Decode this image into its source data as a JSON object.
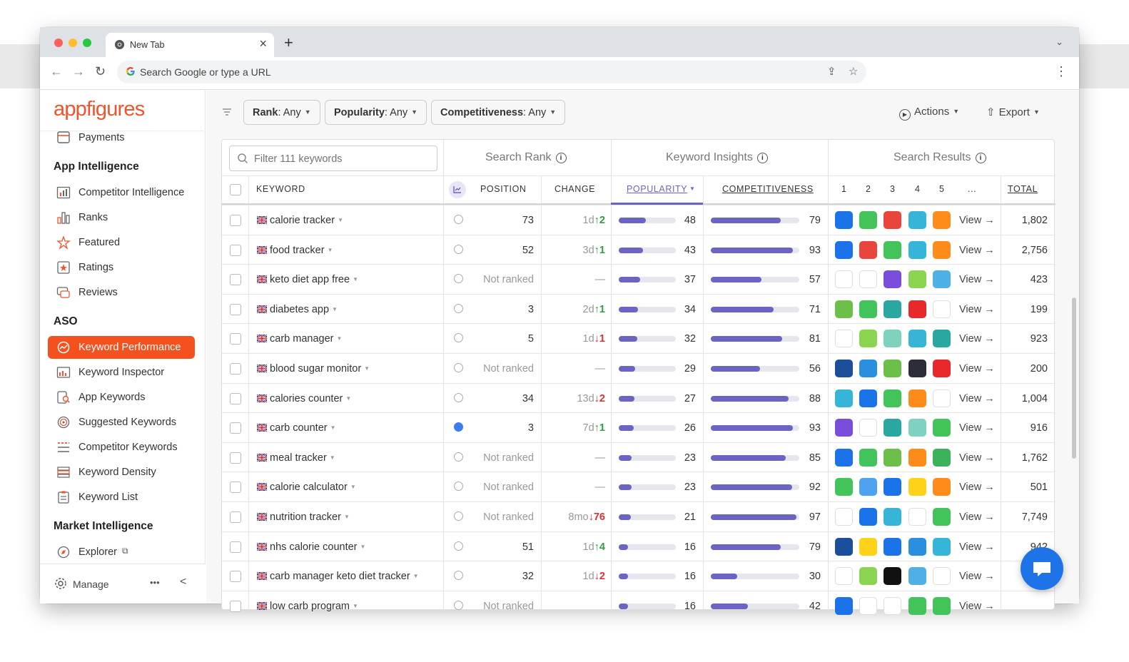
{
  "browser": {
    "tab_title": "New Tab",
    "omnibox_placeholder": "Search Google or type a URL"
  },
  "sidebar": {
    "logo": "appfigures",
    "top_item": "Payments",
    "sections": [
      {
        "title": "App Intelligence",
        "items": [
          "Competitor Intelligence",
          "Ranks",
          "Featured",
          "Ratings",
          "Reviews"
        ]
      },
      {
        "title": "ASO",
        "items": [
          "Keyword Performance",
          "Keyword Inspector",
          "App Keywords",
          "Suggested Keywords",
          "Competitor Keywords",
          "Keyword Density",
          "Keyword List"
        ]
      },
      {
        "title": "Market Intelligence",
        "items": [
          "Explorer"
        ]
      }
    ],
    "active_item": "Keyword Performance",
    "footer": {
      "manage": "Manage",
      "more": "•••",
      "collapse": "<"
    }
  },
  "filters": [
    {
      "label": "Rank",
      "value": ": Any"
    },
    {
      "label": "Popularity",
      "value": ": Any"
    },
    {
      "label": "Competitiveness",
      "value": ": Any"
    }
  ],
  "actions": {
    "actions_label": "Actions",
    "export_label": "Export"
  },
  "table": {
    "filter_placeholder": "Filter 111 keywords",
    "groups": {
      "search_rank": "Search Rank",
      "keyword_insights": "Keyword Insights",
      "search_results": "Search Results"
    },
    "columns": {
      "keyword": "KEYWORD",
      "position": "POSITION",
      "change": "CHANGE",
      "popularity": "POPULARITY",
      "competitiveness": "COMPETITIVENESS",
      "results": [
        "1",
        "2",
        "3",
        "4",
        "5",
        "..."
      ],
      "total": "TOTAL"
    },
    "view_label": "View →",
    "rows": [
      {
        "keyword": "calorie tracker",
        "position": "73",
        "ranked": true,
        "change_time": "1d",
        "change_dir": "up",
        "change_val": "2",
        "popularity": 48,
        "competitiveness": 79,
        "apps": [
          "#1a73e8",
          "#43c45a",
          "#e8453c",
          "#36b5d8",
          "#ff8c1a"
        ],
        "total": "1,802"
      },
      {
        "keyword": "food tracker",
        "position": "52",
        "ranked": true,
        "change_time": "3d",
        "change_dir": "up",
        "change_val": "1",
        "popularity": 43,
        "competitiveness": 93,
        "apps": [
          "#1a73e8",
          "#e8453c",
          "#43c45a",
          "#36b5d8",
          "#ff8c1a"
        ],
        "total": "2,756"
      },
      {
        "keyword": "keto diet app free",
        "position": "Not ranked",
        "ranked": false,
        "change_time": "",
        "change_dir": "none",
        "change_val": "—",
        "popularity": 37,
        "competitiveness": 57,
        "apps": [
          "#ffffff",
          "#ffffff",
          "#7b4ddb",
          "#8bd450",
          "#4fb0e8"
        ],
        "total": "423"
      },
      {
        "keyword": "diabetes app",
        "position": "3",
        "ranked": true,
        "change_time": "2d",
        "change_dir": "up",
        "change_val": "1",
        "popularity": 34,
        "competitiveness": 71,
        "apps": [
          "#6cc04a",
          "#43c45a",
          "#2aa7a0",
          "#e8282b",
          "#ffffff"
        ],
        "total": "199"
      },
      {
        "keyword": "carb manager",
        "position": "5",
        "ranked": true,
        "change_time": "1d",
        "change_dir": "down",
        "change_val": "1",
        "popularity": 32,
        "competitiveness": 81,
        "apps": [
          "#ffffff",
          "#8bd450",
          "#7fd2c0",
          "#36b5d8",
          "#2aa7a0"
        ],
        "total": "923"
      },
      {
        "keyword": "blood sugar monitor",
        "position": "Not ranked",
        "ranked": false,
        "change_time": "",
        "change_dir": "none",
        "change_val": "—",
        "popularity": 29,
        "competitiveness": 56,
        "apps": [
          "#1b4f9b",
          "#2b8fe0",
          "#6cc04a",
          "#2d2d3a",
          "#e8282b"
        ],
        "total": "200"
      },
      {
        "keyword": "calories counter",
        "position": "34",
        "ranked": true,
        "change_time": "13d",
        "change_dir": "down",
        "change_val": "2",
        "popularity": 27,
        "competitiveness": 88,
        "apps": [
          "#36b5d8",
          "#1a73e8",
          "#43c45a",
          "#ff8c1a",
          "#ffffff"
        ],
        "total": "1,004"
      },
      {
        "keyword": "carb counter",
        "position": "3",
        "ranked": true,
        "change_time": "7d",
        "change_dir": "up",
        "change_val": "1",
        "popularity": 26,
        "competitiveness": 93,
        "apps": [
          "#7b4ddb",
          "#ffffff",
          "#2aa7a0",
          "#7fd2c0",
          "#43c45a"
        ],
        "total": "916"
      },
      {
        "keyword": "meal tracker",
        "position": "Not ranked",
        "ranked": false,
        "change_time": "",
        "change_dir": "none",
        "change_val": "—",
        "popularity": 23,
        "competitiveness": 85,
        "apps": [
          "#1a73e8",
          "#43c45a",
          "#6cc04a",
          "#ff8c1a",
          "#3cb35a"
        ],
        "total": "1,762"
      },
      {
        "keyword": "calorie calculator",
        "position": "Not ranked",
        "ranked": false,
        "change_time": "",
        "change_dir": "none",
        "change_val": "—",
        "popularity": 23,
        "competitiveness": 92,
        "apps": [
          "#43c45a",
          "#4da3f0",
          "#1a73e8",
          "#ffd21a",
          "#ff8c1a"
        ],
        "total": "501"
      },
      {
        "keyword": "nutrition tracker",
        "position": "Not ranked",
        "ranked": false,
        "change_time": "8mo",
        "change_dir": "down",
        "change_val": "76",
        "popularity": 21,
        "competitiveness": 97,
        "apps": [
          "#ffffff",
          "#1a73e8",
          "#36b5d8",
          "#ffffff",
          "#43c45a"
        ],
        "total": "7,749"
      },
      {
        "keyword": "nhs calorie counter",
        "position": "51",
        "ranked": true,
        "change_time": "1d",
        "change_dir": "up",
        "change_val": "4",
        "popularity": 16,
        "competitiveness": 79,
        "apps": [
          "#1b4f9b",
          "#ffd21a",
          "#1a73e8",
          "#2b8fe0",
          "#36b5d8"
        ],
        "total": "942"
      },
      {
        "keyword": "carb manager keto diet tracker",
        "position": "32",
        "ranked": true,
        "change_time": "1d",
        "change_dir": "down",
        "change_val": "2",
        "popularity": 16,
        "competitiveness": 30,
        "apps": [
          "#ffffff",
          "#8bd450",
          "#111111",
          "#4fb0e8",
          "#ffffff"
        ],
        "total": ""
      },
      {
        "keyword": "low carb program",
        "position": "Not ranked",
        "ranked": false,
        "change_time": "",
        "change_dir": "none",
        "change_val": "",
        "popularity": 16,
        "competitiveness": 42,
        "apps": [
          "#1a73e8",
          "#ffffff",
          "#ffffff",
          "#43c45a",
          "#43c45a"
        ],
        "total": ""
      }
    ]
  },
  "colors": {
    "brand": "#f0542d",
    "active_nav": "#f4511e",
    "bar": "#6b64c4",
    "up": "#2f9e44",
    "down": "#e03131",
    "chat": "#1e73e8"
  }
}
